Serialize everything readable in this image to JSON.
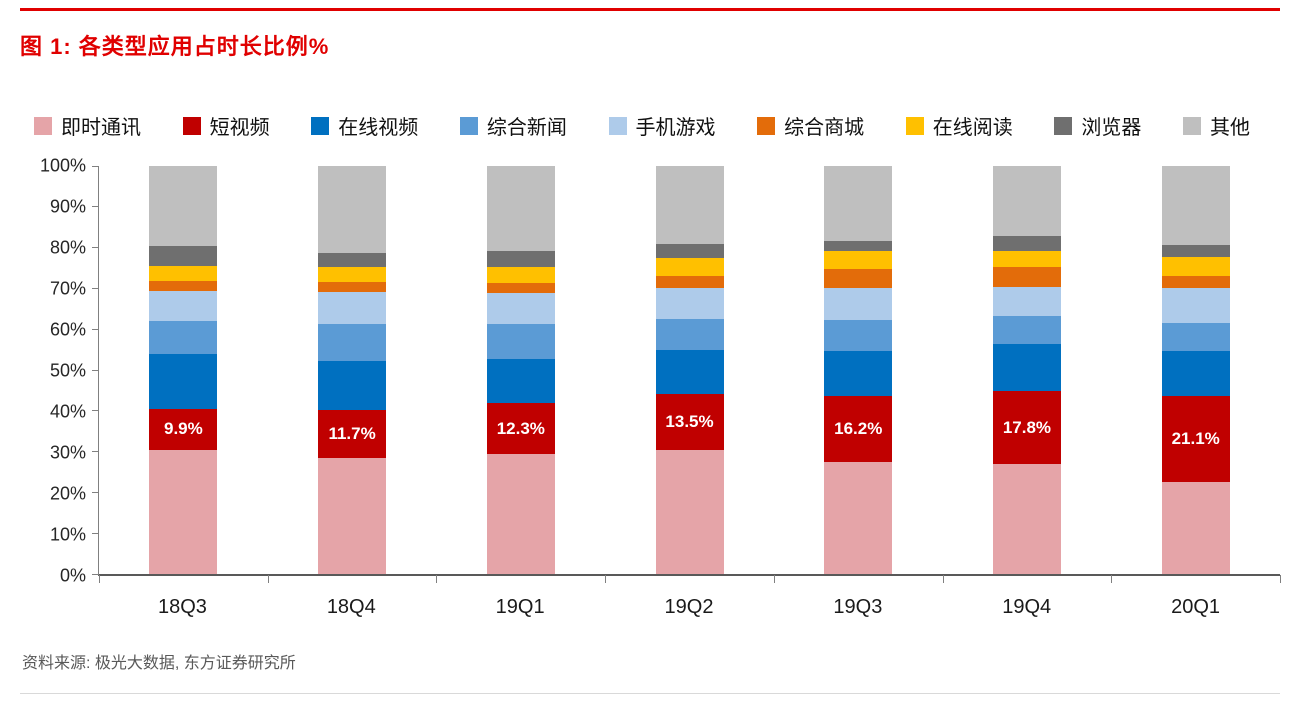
{
  "title": "图 1: 各类型应用占时长比例%",
  "source": "资料来源: 极光大数据, 东方证券研究所",
  "accent_color": "#e00000",
  "chart_data": {
    "type": "bar",
    "stacked": true,
    "title": "各类型应用占时长比例%",
    "xlabel": "",
    "ylabel": "",
    "ylim": [
      0,
      100
    ],
    "grid": false,
    "legend_position": "top",
    "categories": [
      "18Q3",
      "18Q4",
      "19Q1",
      "19Q2",
      "19Q3",
      "19Q4",
      "20Q1"
    ],
    "yticks": [
      "0%",
      "10%",
      "20%",
      "30%",
      "40%",
      "50%",
      "60%",
      "70%",
      "80%",
      "90%",
      "100%"
    ],
    "value_label_series": "短视频",
    "series": [
      {
        "name": "即时通讯",
        "color": "#e5a4a8",
        "values": [
          30.5,
          28.5,
          29.5,
          30.5,
          27.5,
          27.0,
          22.5
        ]
      },
      {
        "name": "短视频",
        "color": "#c00000",
        "values": [
          9.9,
          11.7,
          12.3,
          13.5,
          16.2,
          17.8,
          21.1
        ],
        "labels": [
          "9.9%",
          "11.7%",
          "12.3%",
          "13.5%",
          "16.2%",
          "17.8%",
          "21.1%"
        ]
      },
      {
        "name": "在线视频",
        "color": "#0070c0",
        "values": [
          13.5,
          12.0,
          11.0,
          11.0,
          11.0,
          11.5,
          11.0
        ]
      },
      {
        "name": "综合新闻",
        "color": "#5b9bd5",
        "values": [
          8.0,
          9.0,
          8.5,
          7.5,
          7.5,
          7.0,
          7.0
        ]
      },
      {
        "name": "手机游戏",
        "color": "#aecbea",
        "values": [
          7.5,
          8.0,
          7.5,
          7.5,
          8.0,
          7.0,
          8.5
        ]
      },
      {
        "name": "综合商城",
        "color": "#e36c0a",
        "values": [
          2.5,
          2.5,
          2.5,
          3.0,
          4.5,
          5.0,
          3.0
        ]
      },
      {
        "name": "在线阅读",
        "color": "#ffc000",
        "values": [
          3.5,
          3.5,
          4.0,
          4.5,
          4.5,
          4.0,
          4.5
        ]
      },
      {
        "name": "浏览器",
        "color": "#6f6f6f",
        "values": [
          5.0,
          3.5,
          4.0,
          3.5,
          2.5,
          3.5,
          3.0
        ]
      },
      {
        "name": "其他",
        "color": "#bfbfbf",
        "values": [
          19.6,
          21.3,
          20.7,
          19.0,
          18.3,
          17.2,
          19.4
        ]
      }
    ]
  }
}
